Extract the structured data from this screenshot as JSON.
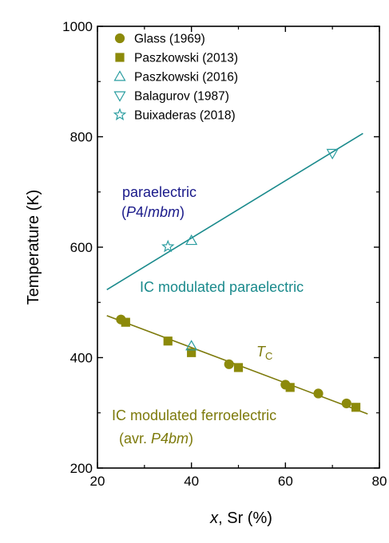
{
  "chart_data": {
    "type": "scatter",
    "title": "",
    "xlabel": {
      "var": "x",
      "rest": ", Sr (%)"
    },
    "ylabel": "Temperature (K)",
    "xlim": [
      20,
      80
    ],
    "ylim": [
      200,
      1000
    ],
    "xticks": [
      "20",
      "40",
      "60",
      "80"
    ],
    "yticks": [
      "200",
      "400",
      "600",
      "800",
      "1000"
    ],
    "grid": false,
    "legend_position": "top-left",
    "series": [
      {
        "name": "Glass  (1969)",
        "marker": "circle",
        "filled": true,
        "color": "#8c8a0a",
        "points": [
          [
            25,
            469
          ],
          [
            48,
            388
          ],
          [
            60,
            351
          ],
          [
            67,
            335
          ],
          [
            73,
            317
          ]
        ]
      },
      {
        "name": "Paszkowski  (2013)",
        "marker": "square",
        "filled": true,
        "color": "#8c8a0a",
        "points": [
          [
            26,
            464
          ],
          [
            35,
            430
          ],
          [
            40,
            409
          ],
          [
            50,
            382
          ],
          [
            61,
            346
          ],
          [
            75,
            310
          ]
        ]
      },
      {
        "name": "Paszkowski  (2016)",
        "marker": "triangle-up",
        "filled": false,
        "color": "#2a9da0",
        "points": [
          [
            40,
            612
          ],
          [
            40,
            421
          ]
        ]
      },
      {
        "name": "Balagurov  (1987)",
        "marker": "triangle-down",
        "filled": false,
        "color": "#2a9da0",
        "points": [
          [
            70,
            770
          ]
        ]
      },
      {
        "name": "Buixaderas  (2018)",
        "marker": "star",
        "filled": false,
        "color": "#2a9da0",
        "points": [
          [
            35,
            601
          ]
        ]
      }
    ],
    "fit_lines": [
      {
        "color": "#1a8a8c",
        "from": [
          22,
          523
        ],
        "to": [
          76.5,
          806
        ]
      },
      {
        "color": "#7d7a0b",
        "from": [
          22,
          476
        ],
        "to": [
          77.5,
          298
        ]
      }
    ],
    "annotations": {
      "paraelectric_line1": "paraelectric",
      "paraelectric_line2": {
        "open": "(",
        "italic": "P",
        "mid": "4/",
        "italic2": "mbm",
        "close": ")"
      },
      "ic_paraelectric": "IC modulated paraelectric",
      "tc": {
        "main": "T",
        "sub": "C"
      },
      "ic_ferroelectric": "IC modulated ferroelectric",
      "avr": {
        "open": "(avr. ",
        "italic": "P4bm",
        "close": ")"
      }
    },
    "colors": {
      "paraelectric_label": "#1a1a8a",
      "teal": "#1a8a8c",
      "olive": "#7d7a0b"
    }
  }
}
